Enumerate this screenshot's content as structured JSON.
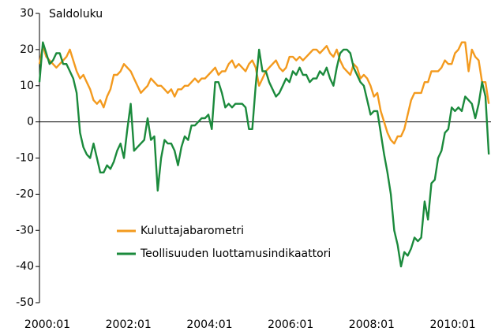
{
  "chart_data": {
    "type": "line",
    "y_label": "Saldoluku",
    "categories": [
      "2000:01",
      null,
      null,
      null,
      null,
      null,
      null,
      null,
      null,
      null,
      null,
      null,
      null,
      null,
      null,
      null,
      null,
      null,
      null,
      null,
      null,
      null,
      null,
      null,
      "2002:01",
      null,
      null,
      null,
      null,
      null,
      null,
      null,
      null,
      null,
      null,
      null,
      null,
      null,
      null,
      null,
      null,
      null,
      null,
      null,
      null,
      null,
      null,
      null,
      "2004:01",
      null,
      null,
      null,
      null,
      null,
      null,
      null,
      null,
      null,
      null,
      null,
      null,
      null,
      null,
      null,
      null,
      null,
      null,
      null,
      null,
      null,
      null,
      null,
      "2006:01",
      null,
      null,
      null,
      null,
      null,
      null,
      null,
      null,
      null,
      null,
      null,
      null,
      null,
      null,
      null,
      null,
      null,
      null,
      null,
      null,
      null,
      null,
      null,
      "2008:01",
      null,
      null,
      null,
      null,
      null,
      null,
      null,
      null,
      null,
      null,
      null,
      null,
      null,
      null,
      null,
      null,
      null,
      null,
      null,
      null,
      null,
      null,
      null,
      "2010:01",
      null,
      null,
      null,
      null,
      null,
      null,
      null,
      null,
      null,
      null,
      null,
      null,
      null
    ],
    "series": [
      {
        "name": "Kuluttajabarometri",
        "color": "#f39a1e",
        "values": [
          16,
          21,
          18,
          17,
          16,
          15,
          16,
          17,
          18,
          20,
          17,
          14,
          12,
          13,
          11,
          9,
          6,
          5,
          6,
          4,
          7,
          9,
          13,
          13,
          14,
          16,
          15,
          14,
          12,
          10,
          8,
          9,
          10,
          12,
          11,
          10,
          10,
          9,
          8,
          9,
          7,
          9,
          9,
          10,
          10,
          11,
          12,
          11,
          12,
          12,
          13,
          14,
          15,
          13,
          14,
          14,
          16,
          17,
          15,
          16,
          15,
          14,
          16,
          17,
          15,
          10,
          12,
          14,
          15,
          16,
          17,
          15,
          14,
          15,
          18,
          18,
          17,
          18,
          17,
          18,
          19,
          20,
          20,
          19,
          20,
          21,
          19,
          18,
          20,
          17,
          15,
          14,
          13,
          16,
          15,
          12,
          13,
          12,
          10,
          7,
          8,
          3,
          0,
          -3,
          -5,
          -6,
          -4,
          -4,
          -2,
          2,
          6,
          8,
          8,
          8,
          11,
          11,
          14,
          14,
          14,
          15,
          17,
          16,
          16,
          19,
          20,
          22,
          22,
          14,
          20,
          18,
          17,
          11,
          11,
          5
        ]
      },
      {
        "name": "Teollisuuden luottamusindikaattori",
        "color": "#1b8a3c",
        "values": [
          11,
          22,
          19,
          16,
          17,
          19,
          19,
          16,
          16,
          14,
          12,
          8,
          -3,
          -7,
          -9,
          -10,
          -6,
          -10,
          -14,
          -14,
          -12,
          -13,
          -11,
          -8,
          -6,
          -10,
          -2,
          5,
          -8,
          -7,
          -6,
          -5,
          1,
          -5,
          -4,
          -19,
          -10,
          -5,
          -6,
          -6,
          -8,
          -12,
          -7,
          -4,
          -5,
          -1,
          -1,
          0,
          1,
          1,
          2,
          -2,
          11,
          11,
          8,
          4,
          5,
          4,
          5,
          5,
          5,
          4,
          -2,
          -2,
          10,
          20,
          14,
          14,
          11,
          9,
          7,
          8,
          10,
          12,
          11,
          14,
          13,
          15,
          13,
          13,
          11,
          12,
          12,
          14,
          13,
          15,
          12,
          10,
          15,
          19,
          20,
          20,
          19,
          15,
          13,
          11,
          10,
          6,
          2,
          3,
          3,
          -3,
          -9,
          -14,
          -20,
          -30,
          -34,
          -40,
          -36,
          -37,
          -35,
          -32,
          -33,
          -32,
          -22,
          -27,
          -17,
          -16,
          -10,
          -8,
          -3,
          -2,
          4,
          3,
          4,
          3,
          7,
          6,
          5,
          1,
          5,
          11,
          7,
          -9
        ]
      }
    ],
    "ylim": [
      -50,
      30
    ],
    "yticks": [
      -50,
      -40,
      -30,
      -20,
      -10,
      0,
      10,
      20,
      30
    ]
  }
}
